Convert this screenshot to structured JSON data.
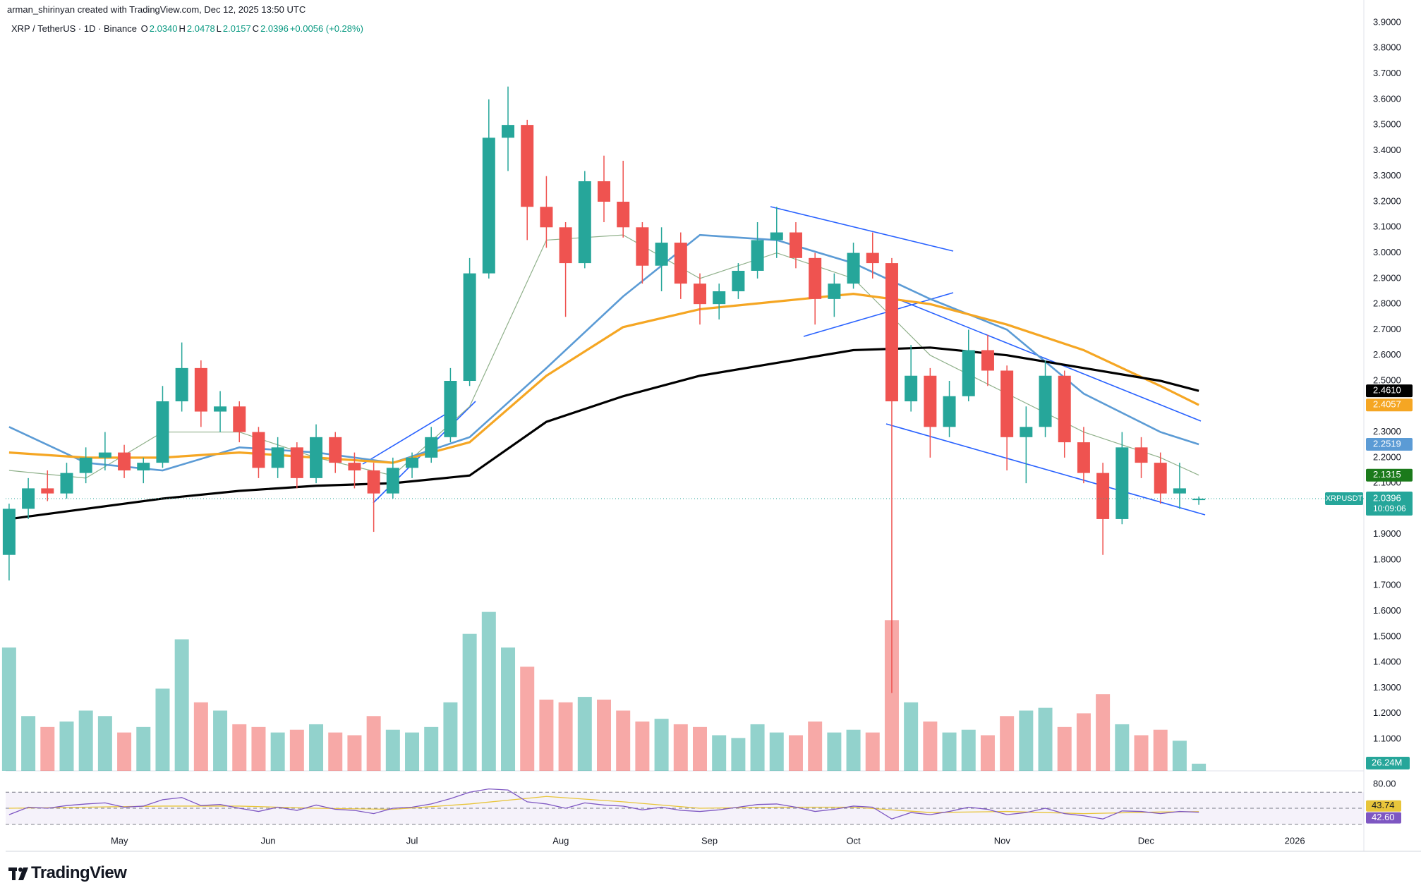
{
  "credit": "arman_shirinyan created with TradingView.com, Dec 12, 2025 13:50 UTC",
  "brand": "TradingView",
  "chart_data": {
    "type": "candlestick",
    "header": {
      "symbol": "XRP / TetherUS · 1D · Binance",
      "fields": [
        {
          "key": "O",
          "label": "2.0340"
        },
        {
          "key": "H",
          "label": "2.0478"
        },
        {
          "key": "L",
          "label": "2.0157"
        },
        {
          "key": "C",
          "label": "2.0396"
        }
      ],
      "change": "+0.0056 (+0.28%)"
    },
    "up_color": "#26a69a",
    "down_color": "#ef5350",
    "xlim": [
      -0.18,
      70.6
    ],
    "xticks": [
      {
        "value": 5.75,
        "label": "May"
      },
      {
        "value": 13.5,
        "label": "Jun"
      },
      {
        "value": 21,
        "label": "Jul"
      },
      {
        "value": 28.75,
        "label": "Aug"
      },
      {
        "value": 36.5,
        "label": "Sep"
      },
      {
        "value": 44,
        "label": "Oct"
      },
      {
        "value": 51.75,
        "label": "Nov"
      },
      {
        "value": 59.25,
        "label": "Dec"
      },
      {
        "value": 67,
        "label": "2026"
      }
    ],
    "ylim": [
      1.1,
      3.9
    ],
    "yticks": [
      {
        "value": 3.9,
        "label": "3.9000"
      },
      {
        "value": 3.8,
        "label": "3.8000"
      },
      {
        "value": 3.7,
        "label": "3.7000"
      },
      {
        "value": 3.6,
        "label": "3.6000"
      },
      {
        "value": 3.5,
        "label": "3.5000"
      },
      {
        "value": 3.4,
        "label": "3.4000"
      },
      {
        "value": 3.3,
        "label": "3.3000"
      },
      {
        "value": 3.2,
        "label": "3.2000"
      },
      {
        "value": 3.1,
        "label": "3.1000"
      },
      {
        "value": 3.0,
        "label": "3.0000"
      },
      {
        "value": 2.9,
        "label": "2.9000"
      },
      {
        "value": 2.8,
        "label": "2.8000"
      },
      {
        "value": 2.7,
        "label": "2.7000"
      },
      {
        "value": 2.6,
        "label": "2.6000"
      },
      {
        "value": 2.5,
        "label": "2.5000"
      },
      {
        "value": 2.4,
        "label": "2.4000"
      },
      {
        "value": 2.3,
        "label": "2.3000"
      },
      {
        "value": 2.2,
        "label": "2.2000"
      },
      {
        "value": 2.1,
        "label": "2.1000"
      },
      {
        "value": 2.0,
        "label": "2.0000"
      },
      {
        "value": 1.9,
        "label": "1.9000"
      },
      {
        "value": 1.8,
        "label": "1.8000"
      },
      {
        "value": 1.7,
        "label": "1.7000"
      },
      {
        "value": 1.6,
        "label": "1.6000"
      },
      {
        "value": 1.5,
        "label": "1.5000"
      },
      {
        "value": 1.4,
        "label": "1.4000"
      },
      {
        "value": 1.3,
        "label": "1.3000"
      },
      {
        "value": 1.2,
        "label": "1.2000"
      },
      {
        "value": 1.1,
        "label": "1.1000"
      }
    ],
    "grid": false,
    "ohlc": [
      [
        1.82,
        2.02,
        1.72,
        2.0
      ],
      [
        2.0,
        2.12,
        1.96,
        2.08
      ],
      [
        2.08,
        2.15,
        2.03,
        2.06
      ],
      [
        2.06,
        2.18,
        2.04,
        2.14
      ],
      [
        2.14,
        2.24,
        2.1,
        2.2
      ],
      [
        2.2,
        2.3,
        2.15,
        2.22
      ],
      [
        2.22,
        2.25,
        2.12,
        2.15
      ],
      [
        2.15,
        2.2,
        2.1,
        2.18
      ],
      [
        2.18,
        2.48,
        2.16,
        2.42
      ],
      [
        2.42,
        2.65,
        2.38,
        2.55
      ],
      [
        2.55,
        2.58,
        2.32,
        2.38
      ],
      [
        2.38,
        2.46,
        2.3,
        2.4
      ],
      [
        2.4,
        2.42,
        2.26,
        2.3
      ],
      [
        2.3,
        2.32,
        2.12,
        2.16
      ],
      [
        2.16,
        2.28,
        2.12,
        2.24
      ],
      [
        2.24,
        2.26,
        2.08,
        2.12
      ],
      [
        2.12,
        2.33,
        2.1,
        2.28
      ],
      [
        2.28,
        2.3,
        2.14,
        2.18
      ],
      [
        2.18,
        2.22,
        2.08,
        2.15
      ],
      [
        2.15,
        2.18,
        1.91,
        2.06
      ],
      [
        2.06,
        2.2,
        2.04,
        2.16
      ],
      [
        2.16,
        2.22,
        2.12,
        2.2
      ],
      [
        2.2,
        2.32,
        2.18,
        2.28
      ],
      [
        2.28,
        2.55,
        2.26,
        2.5
      ],
      [
        2.5,
        2.98,
        2.48,
        2.92
      ],
      [
        2.92,
        3.6,
        2.9,
        3.45
      ],
      [
        3.45,
        3.65,
        3.32,
        3.5
      ],
      [
        3.5,
        3.52,
        3.05,
        3.18
      ],
      [
        3.18,
        3.3,
        3.02,
        3.1
      ],
      [
        3.1,
        3.12,
        2.75,
        2.96
      ],
      [
        2.96,
        3.32,
        2.94,
        3.28
      ],
      [
        3.28,
        3.38,
        3.12,
        3.2
      ],
      [
        3.2,
        3.36,
        3.06,
        3.1
      ],
      [
        3.1,
        3.12,
        2.88,
        2.95
      ],
      [
        2.95,
        3.1,
        2.85,
        3.04
      ],
      [
        3.04,
        3.08,
        2.82,
        2.88
      ],
      [
        2.88,
        2.92,
        2.72,
        2.8
      ],
      [
        2.8,
        2.88,
        2.74,
        2.85
      ],
      [
        2.85,
        2.96,
        2.82,
        2.93
      ],
      [
        2.93,
        3.12,
        2.9,
        3.05
      ],
      [
        3.05,
        3.18,
        2.98,
        3.08
      ],
      [
        3.08,
        3.12,
        2.94,
        2.98
      ],
      [
        2.98,
        3.0,
        2.72,
        2.82
      ],
      [
        2.82,
        2.92,
        2.75,
        2.88
      ],
      [
        2.88,
        3.04,
        2.86,
        3.0
      ],
      [
        3.0,
        3.08,
        2.9,
        2.96
      ],
      [
        2.96,
        2.98,
        1.28,
        2.42
      ],
      [
        2.42,
        2.64,
        2.38,
        2.52
      ],
      [
        2.52,
        2.55,
        2.2,
        2.32
      ],
      [
        2.32,
        2.5,
        2.28,
        2.44
      ],
      [
        2.44,
        2.7,
        2.42,
        2.62
      ],
      [
        2.62,
        2.68,
        2.48,
        2.54
      ],
      [
        2.54,
        2.56,
        2.15,
        2.28
      ],
      [
        2.28,
        2.4,
        2.1,
        2.32
      ],
      [
        2.32,
        2.58,
        2.28,
        2.52
      ],
      [
        2.52,
        2.54,
        2.2,
        2.26
      ],
      [
        2.26,
        2.32,
        2.1,
        2.14
      ],
      [
        2.14,
        2.18,
        1.82,
        1.96
      ],
      [
        1.96,
        2.3,
        1.94,
        2.24
      ],
      [
        2.24,
        2.28,
        2.12,
        2.18
      ],
      [
        2.18,
        2.22,
        2.02,
        2.06
      ],
      [
        2.06,
        2.18,
        2.0,
        2.08
      ],
      [
        2.034,
        2.0478,
        2.0157,
        2.0396
      ]
    ],
    "price_tag": {
      "symbol": "XRPUSDT",
      "label": "2.0396",
      "countdown": "10:09:06",
      "color": "#26a69a"
    },
    "series": [
      {
        "color": "#8fb08a",
        "line_width": 1.2,
        "x": [
          0,
          4,
          8,
          12,
          16,
          20,
          24,
          28,
          32,
          36,
          40,
          44,
          48,
          52,
          56,
          60,
          62
        ],
        "values": [
          2.15,
          2.12,
          2.3,
          2.3,
          2.2,
          2.13,
          2.4,
          3.05,
          3.07,
          2.9,
          3.0,
          2.9,
          2.6,
          2.45,
          2.3,
          2.2,
          2.1315
        ],
        "value_labels": [
          null,
          null,
          null,
          null,
          null,
          null,
          null,
          null,
          null,
          null,
          null,
          null,
          null,
          null,
          null,
          null,
          "2.1315"
        ],
        "label_color": "#1b7a1b"
      },
      {
        "color": "#5b9bd5",
        "line_width": 2.6,
        "x": [
          0,
          4,
          8,
          12,
          16,
          20,
          24,
          28,
          32,
          36,
          40,
          44,
          48,
          52,
          56,
          60,
          62
        ],
        "values": [
          2.32,
          2.18,
          2.15,
          2.24,
          2.22,
          2.18,
          2.28,
          2.55,
          2.83,
          3.07,
          3.05,
          2.96,
          2.82,
          2.7,
          2.45,
          2.3,
          2.2519
        ],
        "value_labels": [
          null,
          null,
          null,
          null,
          null,
          null,
          null,
          null,
          null,
          null,
          null,
          null,
          null,
          null,
          null,
          null,
          "2.2519"
        ],
        "label_color": "#5b9bd5"
      },
      {
        "color": "#f5a623",
        "line_width": 3.2,
        "x": [
          0,
          4,
          8,
          12,
          16,
          20,
          24,
          28,
          32,
          36,
          40,
          44,
          48,
          52,
          56,
          60,
          62
        ],
        "values": [
          2.22,
          2.2,
          2.2,
          2.22,
          2.2,
          2.18,
          2.26,
          2.52,
          2.71,
          2.78,
          2.81,
          2.84,
          2.8,
          2.72,
          2.62,
          2.48,
          2.4057
        ],
        "value_labels": [
          null,
          null,
          null,
          null,
          null,
          null,
          null,
          null,
          null,
          null,
          null,
          null,
          null,
          null,
          null,
          null,
          "2.4057"
        ],
        "label_color": "#f5a623"
      },
      {
        "color": "#000000",
        "line_width": 3.2,
        "x": [
          0,
          4,
          8,
          12,
          16,
          20,
          24,
          28,
          32,
          36,
          40,
          44,
          48,
          52,
          56,
          60,
          62
        ],
        "values": [
          1.96,
          2.0,
          2.04,
          2.07,
          2.09,
          2.1,
          2.13,
          2.34,
          2.44,
          2.52,
          2.57,
          2.62,
          2.63,
          2.6,
          2.55,
          2.5,
          2.461
        ],
        "value_labels": [
          null,
          null,
          null,
          null,
          null,
          null,
          null,
          null,
          null,
          null,
          null,
          null,
          null,
          null,
          null,
          null,
          "2.4610"
        ],
        "label_color": "#000000"
      }
    ],
    "volume": {
      "vlim": [
        0,
        700
      ],
      "values": [
        450,
        200,
        160,
        180,
        220,
        200,
        140,
        160,
        300,
        480,
        250,
        220,
        170,
        160,
        140,
        150,
        170,
        140,
        130,
        200,
        150,
        140,
        160,
        250,
        500,
        580,
        450,
        380,
        260,
        250,
        270,
        260,
        220,
        180,
        190,
        170,
        160,
        130,
        120,
        170,
        140,
        130,
        180,
        140,
        150,
        140,
        550,
        250,
        180,
        140,
        150,
        130,
        200,
        220,
        230,
        160,
        210,
        280,
        170,
        130,
        150,
        110,
        26.24
      ],
      "value_labels": [
        null,
        null,
        null,
        null,
        null,
        null,
        null,
        null,
        null,
        null,
        null,
        null,
        null,
        null,
        null,
        null,
        null,
        null,
        null,
        null,
        null,
        null,
        null,
        null,
        null,
        null,
        null,
        null,
        null,
        null,
        null,
        null,
        null,
        null,
        null,
        null,
        null,
        null,
        null,
        null,
        null,
        null,
        null,
        null,
        null,
        null,
        null,
        null,
        null,
        null,
        null,
        null,
        null,
        null,
        null,
        null,
        null,
        null,
        null,
        null,
        null,
        null,
        "26.24M"
      ]
    },
    "rsi": {
      "ylim": [
        0,
        100
      ],
      "yticks": [
        {
          "value": 80,
          "label": "80.00"
        }
      ],
      "bands": [
        80,
        50,
        20
      ],
      "color": "#7e57c2",
      "ma_color": "#e8c53a",
      "values": [
        38,
        52,
        50,
        55,
        58,
        60,
        52,
        54,
        66,
        70,
        55,
        57,
        50,
        44,
        52,
        46,
        56,
        48,
        46,
        40,
        50,
        52,
        58,
        68,
        80,
        86,
        84,
        62,
        58,
        50,
        60,
        56,
        54,
        47,
        52,
        46,
        44,
        47,
        52,
        57,
        58,
        52,
        44,
        48,
        54,
        52,
        30,
        42,
        38,
        44,
        52,
        48,
        38,
        42,
        50,
        40,
        36,
        30,
        45,
        44,
        40,
        44,
        42.6
      ],
      "value_labels": [
        null,
        null,
        null,
        null,
        null,
        null,
        null,
        null,
        null,
        null,
        null,
        null,
        null,
        null,
        null,
        null,
        null,
        null,
        null,
        null,
        null,
        null,
        null,
        null,
        null,
        null,
        null,
        null,
        null,
        null,
        null,
        null,
        null,
        null,
        null,
        null,
        null,
        null,
        null,
        null,
        null,
        null,
        null,
        null,
        null,
        null,
        null,
        null,
        null,
        null,
        null,
        null,
        null,
        null,
        null,
        null,
        null,
        null,
        null,
        null,
        null,
        null,
        "42.60"
      ],
      "ma_x": [
        0,
        4,
        8,
        12,
        16,
        20,
        24,
        28,
        32,
        36,
        40,
        44,
        48,
        52,
        56,
        60,
        62
      ],
      "ma_values": [
        50,
        52,
        54,
        54,
        50,
        48,
        58,
        72,
        62,
        50,
        52,
        52,
        42,
        44,
        40,
        43,
        43.74
      ],
      "ma_value_labels": [
        null,
        null,
        null,
        null,
        null,
        null,
        null,
        null,
        null,
        null,
        null,
        null,
        null,
        null,
        null,
        null,
        "43.74"
      ]
    }
  }
}
